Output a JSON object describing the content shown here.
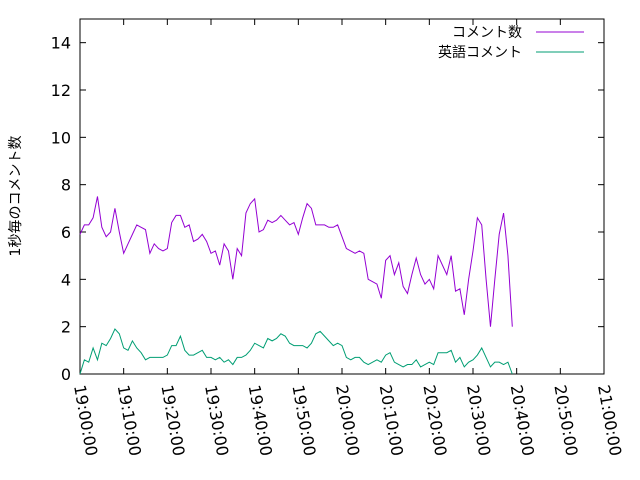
{
  "chart_data": {
    "type": "line",
    "title": "",
    "xlabel": "",
    "ylabel": "1秒毎のコメント数",
    "ylim": [
      0,
      15
    ],
    "yticks": [
      "0",
      "2",
      "4",
      "6",
      "8",
      "10",
      "12",
      "14"
    ],
    "xlim": [
      "19:00:00",
      "21:00:00"
    ],
    "xticks": [
      "19:00:00",
      "19:10:00",
      "19:20:00",
      "19:30:00",
      "19:40:00",
      "19:50:00",
      "20:00:00",
      "20:10:00",
      "20:20:00",
      "20:30:00",
      "20:40:00",
      "20:50:00",
      "21:00:00"
    ],
    "grid": false,
    "legend": "top-right",
    "series": [
      {
        "name": "コメント数",
        "color": "#9400d3",
        "points": [
          [
            "19:00:00",
            5.9
          ],
          [
            "19:01:00",
            6.3
          ],
          [
            "19:02:00",
            6.3
          ],
          [
            "19:03:00",
            6.6
          ],
          [
            "19:04:00",
            7.5
          ],
          [
            "19:05:00",
            6.2
          ],
          [
            "19:06:00",
            5.8
          ],
          [
            "19:07:00",
            6.0
          ],
          [
            "19:08:00",
            7.0
          ],
          [
            "19:09:00",
            6.0
          ],
          [
            "19:10:00",
            5.1
          ],
          [
            "19:11:00",
            5.5
          ],
          [
            "19:12:00",
            5.9
          ],
          [
            "19:13:00",
            6.3
          ],
          [
            "19:14:00",
            6.2
          ],
          [
            "19:15:00",
            6.1
          ],
          [
            "19:16:00",
            5.1
          ],
          [
            "19:17:00",
            5.5
          ],
          [
            "19:18:00",
            5.3
          ],
          [
            "19:19:00",
            5.2
          ],
          [
            "19:20:00",
            5.3
          ],
          [
            "19:21:00",
            6.4
          ],
          [
            "19:22:00",
            6.7
          ],
          [
            "19:23:00",
            6.7
          ],
          [
            "19:24:00",
            6.2
          ],
          [
            "19:25:00",
            6.3
          ],
          [
            "19:26:00",
            5.6
          ],
          [
            "19:27:00",
            5.7
          ],
          [
            "19:28:00",
            5.9
          ],
          [
            "19:29:00",
            5.6
          ],
          [
            "19:30:00",
            5.1
          ],
          [
            "19:31:00",
            5.2
          ],
          [
            "19:32:00",
            4.6
          ],
          [
            "19:33:00",
            5.5
          ],
          [
            "19:34:00",
            5.2
          ],
          [
            "19:35:00",
            4.0
          ],
          [
            "19:36:00",
            5.3
          ],
          [
            "19:37:00",
            5.0
          ],
          [
            "19:38:00",
            6.8
          ],
          [
            "19:39:00",
            7.2
          ],
          [
            "19:40:00",
            7.4
          ],
          [
            "19:41:00",
            6.0
          ],
          [
            "19:42:00",
            6.1
          ],
          [
            "19:43:00",
            6.5
          ],
          [
            "19:44:00",
            6.4
          ],
          [
            "19:45:00",
            6.5
          ],
          [
            "19:46:00",
            6.7
          ],
          [
            "19:47:00",
            6.5
          ],
          [
            "19:48:00",
            6.3
          ],
          [
            "19:49:00",
            6.4
          ],
          [
            "19:50:00",
            5.9
          ],
          [
            "19:51:00",
            6.6
          ],
          [
            "19:52:00",
            7.2
          ],
          [
            "19:53:00",
            7.0
          ],
          [
            "19:54:00",
            6.3
          ],
          [
            "19:55:00",
            6.3
          ],
          [
            "19:56:00",
            6.3
          ],
          [
            "19:57:00",
            6.2
          ],
          [
            "19:58:00",
            6.2
          ],
          [
            "19:59:00",
            6.3
          ],
          [
            "20:00:00",
            5.8
          ],
          [
            "20:01:00",
            5.3
          ],
          [
            "20:02:00",
            5.2
          ],
          [
            "20:03:00",
            5.1
          ],
          [
            "20:04:00",
            5.2
          ],
          [
            "20:05:00",
            5.1
          ],
          [
            "20:06:00",
            4.0
          ],
          [
            "20:07:00",
            3.9
          ],
          [
            "20:08:00",
            3.8
          ],
          [
            "20:09:00",
            3.2
          ],
          [
            "20:10:00",
            4.8
          ],
          [
            "20:11:00",
            5.0
          ],
          [
            "20:12:00",
            4.2
          ],
          [
            "20:13:00",
            4.7
          ],
          [
            "20:14:00",
            3.7
          ],
          [
            "20:15:00",
            3.4
          ],
          [
            "20:16:00",
            4.2
          ],
          [
            "20:17:00",
            4.9
          ],
          [
            "20:18:00",
            4.2
          ],
          [
            "20:19:00",
            3.8
          ],
          [
            "20:20:00",
            4.0
          ],
          [
            "20:21:00",
            3.6
          ],
          [
            "20:22:00",
            5.0
          ],
          [
            "20:23:00",
            4.6
          ],
          [
            "20:24:00",
            4.2
          ],
          [
            "20:25:00",
            5.0
          ],
          [
            "20:26:00",
            3.5
          ],
          [
            "20:27:00",
            3.6
          ],
          [
            "20:28:00",
            2.5
          ],
          [
            "20:29:00",
            4.0
          ],
          [
            "20:30:00",
            5.2
          ],
          [
            "20:31:00",
            6.6
          ],
          [
            "20:32:00",
            6.3
          ],
          [
            "20:33:00",
            4.0
          ],
          [
            "20:34:00",
            2.0
          ],
          [
            "20:35:00",
            4.0
          ],
          [
            "20:36:00",
            5.9
          ],
          [
            "20:37:00",
            6.8
          ],
          [
            "20:38:00",
            5.0
          ],
          [
            "20:39:00",
            2.0
          ]
        ]
      },
      {
        "name": "英語コメント",
        "color": "#009e73",
        "points": [
          [
            "19:00:00",
            0.0
          ],
          [
            "19:01:00",
            0.6
          ],
          [
            "19:02:00",
            0.5
          ],
          [
            "19:03:00",
            1.1
          ],
          [
            "19:04:00",
            0.6
          ],
          [
            "19:05:00",
            1.3
          ],
          [
            "19:06:00",
            1.2
          ],
          [
            "19:07:00",
            1.5
          ],
          [
            "19:08:00",
            1.9
          ],
          [
            "19:09:00",
            1.7
          ],
          [
            "19:10:00",
            1.1
          ],
          [
            "19:11:00",
            1.0
          ],
          [
            "19:12:00",
            1.4
          ],
          [
            "19:13:00",
            1.1
          ],
          [
            "19:14:00",
            0.9
          ],
          [
            "19:15:00",
            0.6
          ],
          [
            "19:16:00",
            0.7
          ],
          [
            "19:17:00",
            0.7
          ],
          [
            "19:18:00",
            0.7
          ],
          [
            "19:19:00",
            0.7
          ],
          [
            "19:20:00",
            0.8
          ],
          [
            "19:21:00",
            1.2
          ],
          [
            "19:22:00",
            1.2
          ],
          [
            "19:23:00",
            1.6
          ],
          [
            "19:24:00",
            1.0
          ],
          [
            "19:25:00",
            0.8
          ],
          [
            "19:26:00",
            0.8
          ],
          [
            "19:27:00",
            0.9
          ],
          [
            "19:28:00",
            1.0
          ],
          [
            "19:29:00",
            0.7
          ],
          [
            "19:30:00",
            0.7
          ],
          [
            "19:31:00",
            0.6
          ],
          [
            "19:32:00",
            0.7
          ],
          [
            "19:33:00",
            0.5
          ],
          [
            "19:34:00",
            0.6
          ],
          [
            "19:35:00",
            0.4
          ],
          [
            "19:36:00",
            0.7
          ],
          [
            "19:37:00",
            0.7
          ],
          [
            "19:38:00",
            0.8
          ],
          [
            "19:39:00",
            1.0
          ],
          [
            "19:40:00",
            1.3
          ],
          [
            "19:41:00",
            1.2
          ],
          [
            "19:42:00",
            1.1
          ],
          [
            "19:43:00",
            1.5
          ],
          [
            "19:44:00",
            1.4
          ],
          [
            "19:45:00",
            1.5
          ],
          [
            "19:46:00",
            1.7
          ],
          [
            "19:47:00",
            1.6
          ],
          [
            "19:48:00",
            1.3
          ],
          [
            "19:49:00",
            1.2
          ],
          [
            "19:50:00",
            1.2
          ],
          [
            "19:51:00",
            1.2
          ],
          [
            "19:52:00",
            1.1
          ],
          [
            "19:53:00",
            1.3
          ],
          [
            "19:54:00",
            1.7
          ],
          [
            "19:55:00",
            1.8
          ],
          [
            "19:56:00",
            1.6
          ],
          [
            "19:57:00",
            1.4
          ],
          [
            "19:58:00",
            1.2
          ],
          [
            "19:59:00",
            1.3
          ],
          [
            "20:00:00",
            1.2
          ],
          [
            "20:01:00",
            0.7
          ],
          [
            "20:02:00",
            0.6
          ],
          [
            "20:03:00",
            0.7
          ],
          [
            "20:04:00",
            0.7
          ],
          [
            "20:05:00",
            0.5
          ],
          [
            "20:06:00",
            0.4
          ],
          [
            "20:07:00",
            0.5
          ],
          [
            "20:08:00",
            0.6
          ],
          [
            "20:09:00",
            0.5
          ],
          [
            "20:10:00",
            0.8
          ],
          [
            "20:11:00",
            0.9
          ],
          [
            "20:12:00",
            0.5
          ],
          [
            "20:13:00",
            0.4
          ],
          [
            "20:14:00",
            0.3
          ],
          [
            "20:15:00",
            0.4
          ],
          [
            "20:16:00",
            0.4
          ],
          [
            "20:17:00",
            0.6
          ],
          [
            "20:18:00",
            0.3
          ],
          [
            "20:19:00",
            0.4
          ],
          [
            "20:20:00",
            0.5
          ],
          [
            "20:21:00",
            0.4
          ],
          [
            "20:22:00",
            0.9
          ],
          [
            "20:23:00",
            0.9
          ],
          [
            "20:24:00",
            0.9
          ],
          [
            "20:25:00",
            1.0
          ],
          [
            "20:26:00",
            0.5
          ],
          [
            "20:27:00",
            0.7
          ],
          [
            "20:28:00",
            0.3
          ],
          [
            "20:29:00",
            0.5
          ],
          [
            "20:30:00",
            0.6
          ],
          [
            "20:31:00",
            0.8
          ],
          [
            "20:32:00",
            1.1
          ],
          [
            "20:33:00",
            0.7
          ],
          [
            "20:34:00",
            0.3
          ],
          [
            "20:35:00",
            0.5
          ],
          [
            "20:36:00",
            0.5
          ],
          [
            "20:37:00",
            0.4
          ],
          [
            "20:38:00",
            0.5
          ],
          [
            "20:39:00",
            0.0
          ]
        ]
      }
    ]
  }
}
